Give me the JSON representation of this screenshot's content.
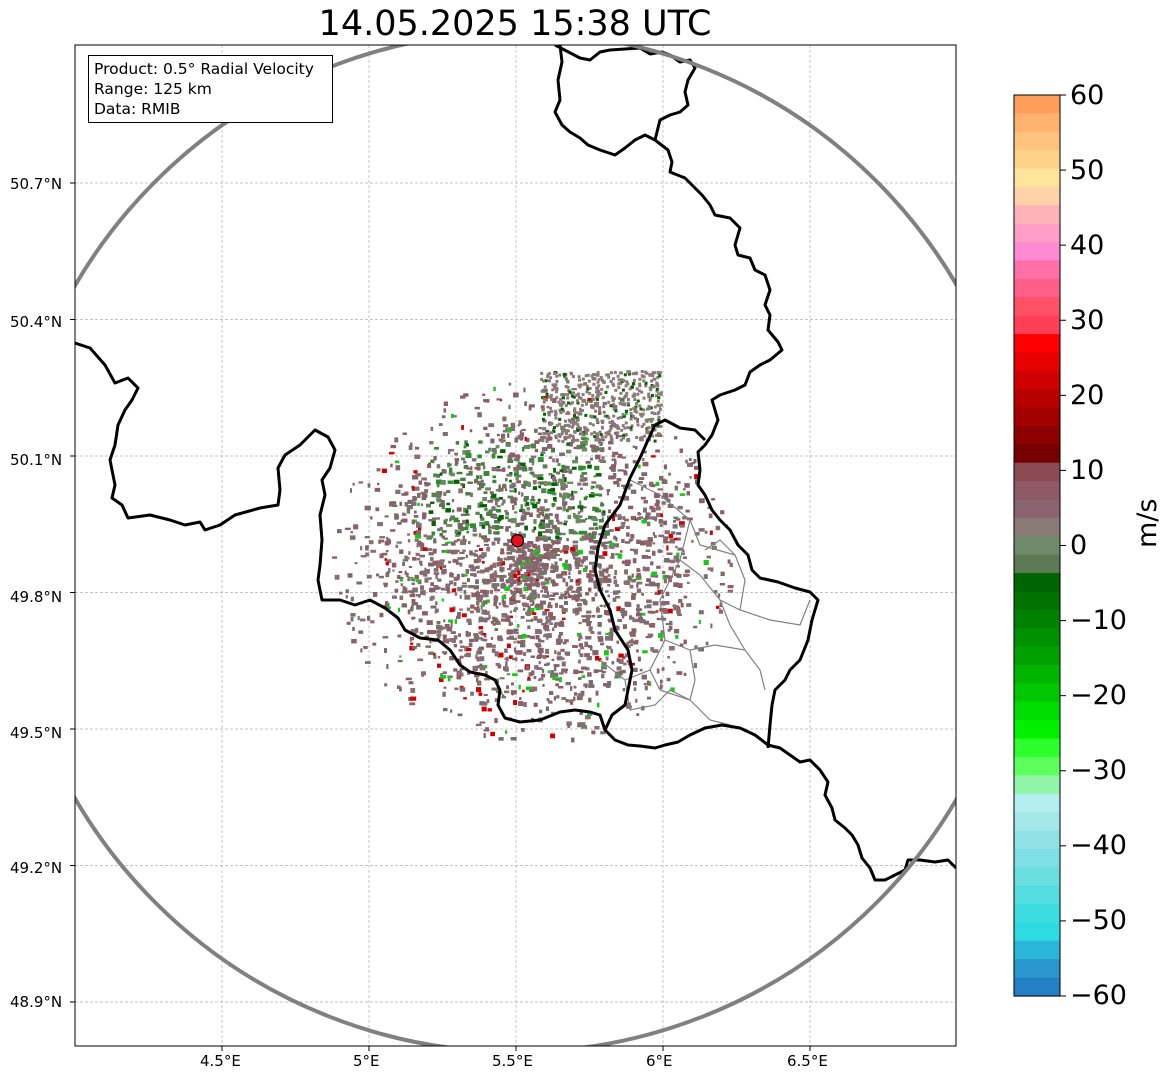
{
  "title": "14.05.2025 15:38 UTC",
  "info": {
    "product": "Product: 0.5° Radial Velocity",
    "range": "Range: 125 km",
    "data": "Data: RMIB"
  },
  "axes": {
    "x_ticks": [
      "4.5°E",
      "5°E",
      "5.5°E",
      "6°E",
      "6.5°E"
    ],
    "x_values": [
      4.5,
      5.0,
      5.5,
      6.0,
      6.5
    ],
    "y_ticks": [
      "50.7°N",
      "50.4°N",
      "50.1°N",
      "49.8°N",
      "49.5°N",
      "49.2°N",
      "48.9°N"
    ],
    "y_values": [
      50.7,
      50.4,
      50.1,
      49.8,
      49.5,
      49.2,
      48.9
    ],
    "lon_range": [
      4.0,
      7.0
    ],
    "lat_range": [
      48.8,
      51.0
    ],
    "grid": true
  },
  "radar_site": {
    "lon": 5.505,
    "lat": 49.914,
    "color": "#e8101a"
  },
  "colorbar": {
    "label": "m/s",
    "ticks": [
      "60",
      "50",
      "40",
      "30",
      "20",
      "10",
      "0",
      "−10",
      "−20",
      "−30",
      "−40",
      "−50",
      "−60"
    ],
    "tick_values": [
      60,
      50,
      40,
      30,
      20,
      10,
      0,
      -10,
      -20,
      -30,
      -40,
      -50,
      -60
    ],
    "range": [
      -60,
      60
    ],
    "colors_top_to_bottom": [
      "#ff9e5a",
      "#ffb36e",
      "#ffc27f",
      "#ffd28a",
      "#ffe49b",
      "#ffd2a8",
      "#ffb3b8",
      "#ff9ec7",
      "#ff8ad2",
      "#ff70a8",
      "#ff5f86",
      "#ff5066",
      "#ff3f55",
      "#ff0000",
      "#e80000",
      "#d10000",
      "#b90000",
      "#a30000",
      "#8c0000",
      "#760000",
      "#8a4b52",
      "#8f5a66",
      "#8a6570",
      "#8a7a78",
      "#6e8a6a",
      "#5b7a55",
      "#006400",
      "#007200",
      "#008200",
      "#009000",
      "#00a000",
      "#00b400",
      "#00c800",
      "#00dc00",
      "#00f000",
      "#2cff2c",
      "#5cff5c",
      "#90f5a8",
      "#b4eef0",
      "#a4e8ea",
      "#90e2e6",
      "#7ee0e4",
      "#6adfe2",
      "#54dde0",
      "#3cdde0",
      "#2ddbe0",
      "#2ab7d8",
      "#2a98cc",
      "#2480c4"
    ]
  },
  "legend_colors": {
    "border": "#000000",
    "admin": "#808080",
    "range_ring": "#808080",
    "echo_neutral": "#8a6f72",
    "echo_green": "#5d7f57",
    "echo_dark_green": "#006400",
    "echo_red": "#d10000"
  }
}
